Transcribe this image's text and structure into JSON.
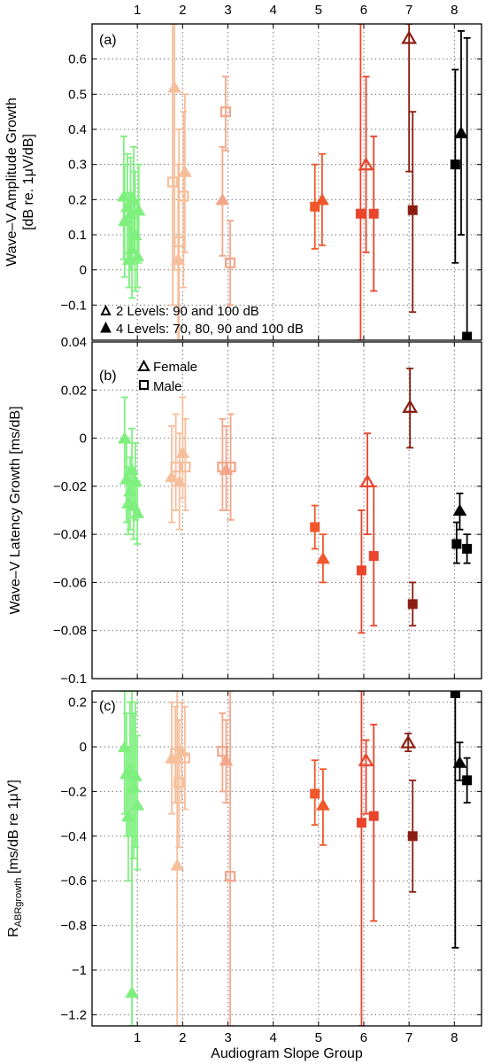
{
  "figure": {
    "xlabel": "Audiogram Slope Group",
    "top_ticks": [
      "1",
      "2",
      "3",
      "4",
      "5",
      "6",
      "7",
      "8"
    ],
    "bottom_ticks": [
      "1",
      "2",
      "3",
      "4",
      "5",
      "6",
      "7",
      "8"
    ]
  },
  "legend_levels": {
    "open": "2 Levels: 90 and 100 dB",
    "filled": "4 Levels: 70, 80, 90 and 100 dB"
  },
  "legend_sex": {
    "female": "Female",
    "male": "Male"
  },
  "colors": {
    "1": "#7ff07f",
    "2": "#f6bf9c",
    "3": "#f3a689",
    "5": "#f0572a",
    "6": "#e9452c",
    "7": "#8b1d10",
    "8": "#000000"
  },
  "chart_data": [
    {
      "type": "scatter",
      "panel": "(a)",
      "ylabel_line1": "Wave–V Amplitude Growth",
      "ylabel_line2": "[dB re. 1μV/dB]",
      "ylim": [
        -0.2,
        0.7
      ],
      "yticks": [
        "0.6",
        "0.5",
        "0.4",
        "0.3",
        "0.2",
        "0.1",
        "0",
        "−0.1"
      ],
      "ytick_values": [
        0.6,
        0.5,
        0.4,
        0.3,
        0.2,
        0.1,
        0,
        -0.1
      ],
      "xlim": [
        0,
        8.6
      ],
      "grid": true,
      "points": [
        {
          "g": "1",
          "x": 0.7,
          "y": 0.21,
          "lo": 0.03,
          "hi": 0.38,
          "m": "tri",
          "f": "filled"
        },
        {
          "g": "1",
          "x": 0.72,
          "y": 0.14,
          "lo": -0.02,
          "hi": 0.3,
          "m": "tri",
          "f": "filled"
        },
        {
          "g": "1",
          "x": 0.78,
          "y": 0.18,
          "lo": 0.02,
          "hi": 0.33,
          "m": "tri",
          "f": "filled"
        },
        {
          "g": "1",
          "x": 0.82,
          "y": 0.03,
          "lo": -0.05,
          "hi": 0.22,
          "m": "tri",
          "f": "filled"
        },
        {
          "g": "1",
          "x": 0.85,
          "y": 0.16,
          "lo": 0.0,
          "hi": 0.32,
          "m": "tri",
          "f": "filled"
        },
        {
          "g": "1",
          "x": 0.88,
          "y": 0.06,
          "lo": -0.08,
          "hi": 0.22,
          "m": "tri",
          "f": "filled"
        },
        {
          "g": "1",
          "x": 0.92,
          "y": 0.2,
          "lo": 0.05,
          "hi": 0.35,
          "m": "tri",
          "f": "filled"
        },
        {
          "g": "1",
          "x": 0.95,
          "y": 0.1,
          "lo": -0.06,
          "hi": 0.28,
          "m": "tri",
          "f": "filled"
        },
        {
          "g": "1",
          "x": 1.0,
          "y": 0.04,
          "lo": -0.05,
          "hi": 0.2,
          "m": "tri",
          "f": "filled"
        },
        {
          "g": "1",
          "x": 1.03,
          "y": 0.17,
          "lo": 0.02,
          "hi": 0.3,
          "m": "tri",
          "f": "filled"
        },
        {
          "g": "2",
          "x": 1.82,
          "y": 0.52,
          "lo": 0.0,
          "hi": 0.7,
          "m": "tri",
          "f": "filled"
        },
        {
          "g": "2",
          "x": 1.9,
          "y": 0.03,
          "lo": -0.2,
          "hi": 0.3,
          "m": "tri",
          "f": "filled"
        },
        {
          "g": "2",
          "x": 2.05,
          "y": 0.28,
          "lo": 0.05,
          "hi": 0.5,
          "m": "tri",
          "f": "filled"
        },
        {
          "g": "2",
          "x": 1.78,
          "y": 0.25,
          "lo": -0.1,
          "hi": 0.7,
          "m": "sq",
          "f": "open"
        },
        {
          "g": "2",
          "x": 1.92,
          "y": 0.08,
          "lo": -0.2,
          "hi": 0.4,
          "m": "sq",
          "f": "open"
        },
        {
          "g": "2",
          "x": 2.02,
          "y": 0.21,
          "lo": -0.05,
          "hi": 0.45,
          "m": "sq",
          "f": "open"
        },
        {
          "g": "3",
          "x": 2.88,
          "y": 0.2,
          "lo": 0.04,
          "hi": 0.35,
          "m": "tri",
          "f": "filled"
        },
        {
          "g": "3",
          "x": 2.95,
          "y": 0.45,
          "lo": 0.34,
          "hi": 0.55,
          "m": "sq",
          "f": "open"
        },
        {
          "g": "3",
          "x": 3.05,
          "y": 0.02,
          "lo": -0.1,
          "hi": 0.14,
          "m": "sq",
          "f": "open"
        },
        {
          "g": "5",
          "x": 4.92,
          "y": 0.18,
          "lo": 0.06,
          "hi": 0.3,
          "m": "sq",
          "f": "filled"
        },
        {
          "g": "5",
          "x": 5.08,
          "y": 0.2,
          "lo": 0.07,
          "hi": 0.33,
          "m": "tri",
          "f": "filled"
        },
        {
          "g": "6",
          "x": 5.93,
          "y": 0.16,
          "lo": -0.2,
          "hi": 0.7,
          "m": "sq",
          "f": "filled"
        },
        {
          "g": "6",
          "x": 6.05,
          "y": 0.3,
          "lo": 0.05,
          "hi": 0.55,
          "m": "tri",
          "f": "open"
        },
        {
          "g": "6",
          "x": 6.22,
          "y": 0.16,
          "lo": -0.06,
          "hi": 0.38,
          "m": "sq",
          "f": "filled"
        },
        {
          "g": "7",
          "x": 7.0,
          "y": 0.66,
          "lo": 0.28,
          "hi": 0.7,
          "m": "tri",
          "f": "open"
        },
        {
          "g": "7",
          "x": 7.08,
          "y": 0.17,
          "lo": -0.12,
          "hi": 0.45,
          "m": "sq",
          "f": "filled"
        },
        {
          "g": "8",
          "x": 8.02,
          "y": 0.3,
          "lo": 0.02,
          "hi": 0.57,
          "m": "sq",
          "f": "filled"
        },
        {
          "g": "8",
          "x": 8.15,
          "y": 0.39,
          "lo": 0.1,
          "hi": 0.68,
          "m": "tri",
          "f": "filled"
        },
        {
          "g": "8",
          "x": 8.28,
          "y": -0.19,
          "lo": -0.2,
          "hi": 0.66,
          "m": "sq",
          "f": "filled"
        }
      ]
    },
    {
      "type": "scatter",
      "panel": "(b)",
      "ylabel_line1": "Wave–V Latency Growth [ms/dB]",
      "ylabel_line2": "",
      "ylim": [
        -0.1,
        0.04
      ],
      "yticks": [
        "0.04",
        "0.02",
        "0",
        "−0.02",
        "−0.04",
        "−0.06",
        "−0.08",
        "−0.1"
      ],
      "ytick_values": [
        0.04,
        0.02,
        0,
        -0.02,
        -0.04,
        -0.06,
        -0.08,
        -0.1
      ],
      "xlim": [
        0,
        8.6
      ],
      "grid": true,
      "points": [
        {
          "g": "1",
          "x": 0.72,
          "y": 0.0,
          "lo": -0.018,
          "hi": 0.017,
          "m": "tri",
          "f": "filled"
        },
        {
          "g": "1",
          "x": 0.76,
          "y": -0.017,
          "lo": -0.035,
          "hi": 0.0,
          "m": "tri",
          "f": "filled"
        },
        {
          "g": "1",
          "x": 0.8,
          "y": -0.027,
          "lo": -0.04,
          "hi": -0.012,
          "m": "tri",
          "f": "filled"
        },
        {
          "g": "1",
          "x": 0.84,
          "y": -0.022,
          "lo": -0.038,
          "hi": -0.008,
          "m": "tri",
          "f": "filled"
        },
        {
          "g": "1",
          "x": 0.88,
          "y": -0.013,
          "lo": -0.03,
          "hi": 0.004,
          "m": "tri",
          "f": "filled"
        },
        {
          "g": "1",
          "x": 0.92,
          "y": -0.028,
          "lo": -0.042,
          "hi": -0.014,
          "m": "tri",
          "f": "filled"
        },
        {
          "g": "1",
          "x": 0.96,
          "y": -0.018,
          "lo": -0.034,
          "hi": -0.002,
          "m": "tri",
          "f": "filled"
        },
        {
          "g": "1",
          "x": 1.0,
          "y": -0.031,
          "lo": -0.044,
          "hi": -0.018,
          "m": "tri",
          "f": "filled"
        },
        {
          "g": "2",
          "x": 1.76,
          "y": -0.016,
          "lo": -0.035,
          "hi": 0.005,
          "m": "tri",
          "f": "filled"
        },
        {
          "g": "2",
          "x": 1.85,
          "y": -0.012,
          "lo": -0.03,
          "hi": 0.01,
          "m": "sq",
          "f": "open"
        },
        {
          "g": "2",
          "x": 1.93,
          "y": -0.018,
          "lo": -0.038,
          "hi": 0.002,
          "m": "tri",
          "f": "filled"
        },
        {
          "g": "2",
          "x": 2.0,
          "y": -0.006,
          "lo": -0.025,
          "hi": 0.017,
          "m": "tri",
          "f": "filled"
        },
        {
          "g": "2",
          "x": 2.06,
          "y": -0.012,
          "lo": -0.03,
          "hi": 0.008,
          "m": "sq",
          "f": "open"
        },
        {
          "g": "3",
          "x": 2.88,
          "y": -0.012,
          "lo": -0.03,
          "hi": 0.008,
          "m": "sq",
          "f": "open"
        },
        {
          "g": "3",
          "x": 2.96,
          "y": -0.013,
          "lo": -0.03,
          "hi": 0.005,
          "m": "tri",
          "f": "filled"
        },
        {
          "g": "3",
          "x": 3.06,
          "y": -0.012,
          "lo": -0.034,
          "hi": 0.01,
          "m": "sq",
          "f": "open"
        },
        {
          "g": "5",
          "x": 4.92,
          "y": -0.037,
          "lo": -0.046,
          "hi": -0.028,
          "m": "sq",
          "f": "filled"
        },
        {
          "g": "5",
          "x": 5.1,
          "y": -0.05,
          "lo": -0.06,
          "hi": -0.04,
          "m": "tri",
          "f": "filled"
        },
        {
          "g": "6",
          "x": 5.95,
          "y": -0.055,
          "lo": -0.081,
          "hi": -0.03,
          "m": "sq",
          "f": "filled"
        },
        {
          "g": "6",
          "x": 6.08,
          "y": -0.018,
          "lo": -0.04,
          "hi": 0.002,
          "m": "tri",
          "f": "open"
        },
        {
          "g": "6",
          "x": 6.22,
          "y": -0.049,
          "lo": -0.078,
          "hi": -0.02,
          "m": "sq",
          "f": "filled"
        },
        {
          "g": "7",
          "x": 7.02,
          "y": 0.013,
          "lo": -0.004,
          "hi": 0.029,
          "m": "tri",
          "f": "open"
        },
        {
          "g": "7",
          "x": 7.08,
          "y": -0.069,
          "lo": -0.078,
          "hi": -0.06,
          "m": "sq",
          "f": "filled"
        },
        {
          "g": "8",
          "x": 8.05,
          "y": -0.044,
          "lo": -0.052,
          "hi": -0.035,
          "m": "sq",
          "f": "filled"
        },
        {
          "g": "8",
          "x": 8.12,
          "y": -0.03,
          "lo": -0.038,
          "hi": -0.023,
          "m": "tri",
          "f": "filled"
        },
        {
          "g": "8",
          "x": 8.28,
          "y": -0.046,
          "lo": -0.052,
          "hi": -0.04,
          "m": "sq",
          "f": "filled"
        }
      ]
    },
    {
      "type": "scatter",
      "panel": "(c)",
      "ylabel_main": "R",
      "ylabel_sub": "ABRgrowth",
      "ylabel_rest": " [ms/dB re 1μV]",
      "ylim": [
        -1.25,
        0.25
      ],
      "yticks": [
        "0.2",
        "0",
        "−0.2",
        "−0.4",
        "−0.6",
        "−0.8",
        "−1",
        "−1.2"
      ],
      "ytick_values": [
        0.2,
        0,
        -0.2,
        -0.4,
        -0.6,
        -0.8,
        -1,
        -1.2
      ],
      "xlim": [
        0,
        8.6
      ],
      "grid": true,
      "points": [
        {
          "g": "1",
          "x": 0.72,
          "y": 0.0,
          "lo": -0.3,
          "hi": 0.25,
          "m": "tri",
          "f": "filled"
        },
        {
          "g": "1",
          "x": 0.76,
          "y": -0.12,
          "lo": -0.4,
          "hi": 0.15,
          "m": "tri",
          "f": "filled"
        },
        {
          "g": "1",
          "x": 0.8,
          "y": -0.31,
          "lo": -0.6,
          "hi": 0.0,
          "m": "tri",
          "f": "filled"
        },
        {
          "g": "1",
          "x": 0.84,
          "y": -0.1,
          "lo": -0.4,
          "hi": 0.2,
          "m": "tri",
          "f": "filled"
        },
        {
          "g": "1",
          "x": 0.88,
          "y": -1.1,
          "lo": -1.25,
          "hi": 0.25,
          "m": "tri",
          "f": "filled"
        },
        {
          "g": "1",
          "x": 0.92,
          "y": -0.18,
          "lo": -0.5,
          "hi": 0.15,
          "m": "tri",
          "f": "filled"
        },
        {
          "g": "1",
          "x": 0.96,
          "y": -0.13,
          "lo": -0.45,
          "hi": 0.2,
          "m": "tri",
          "f": "filled"
        },
        {
          "g": "1",
          "x": 1.0,
          "y": -0.26,
          "lo": -0.55,
          "hi": 0.05,
          "m": "tri",
          "f": "filled"
        },
        {
          "g": "2",
          "x": 1.76,
          "y": -0.05,
          "lo": -0.3,
          "hi": 0.2,
          "m": "tri",
          "f": "filled"
        },
        {
          "g": "2",
          "x": 1.84,
          "y": -0.03,
          "lo": -0.25,
          "hi": 0.18,
          "m": "sq",
          "f": "open"
        },
        {
          "g": "2",
          "x": 1.88,
          "y": -0.53,
          "lo": -1.25,
          "hi": 0.25,
          "m": "tri",
          "f": "filled"
        },
        {
          "g": "2",
          "x": 1.92,
          "y": -0.16,
          "lo": -0.45,
          "hi": 0.12,
          "m": "sq",
          "f": "open"
        },
        {
          "g": "2",
          "x": 1.98,
          "y": -0.02,
          "lo": -0.25,
          "hi": 0.2,
          "m": "tri",
          "f": "filled"
        },
        {
          "g": "2",
          "x": 2.05,
          "y": -0.05,
          "lo": -0.28,
          "hi": 0.18,
          "m": "sq",
          "f": "open"
        },
        {
          "g": "3",
          "x": 2.88,
          "y": -0.02,
          "lo": -0.2,
          "hi": 0.15,
          "m": "sq",
          "f": "open"
        },
        {
          "g": "3",
          "x": 2.96,
          "y": -0.06,
          "lo": -0.25,
          "hi": 0.12,
          "m": "tri",
          "f": "filled"
        },
        {
          "g": "3",
          "x": 3.05,
          "y": -0.58,
          "lo": -1.25,
          "hi": 0.25,
          "m": "sq",
          "f": "open"
        },
        {
          "g": "5",
          "x": 4.92,
          "y": -0.21,
          "lo": -0.35,
          "hi": -0.06,
          "m": "sq",
          "f": "filled"
        },
        {
          "g": "5",
          "x": 5.1,
          "y": -0.26,
          "lo": -0.44,
          "hi": -0.1,
          "m": "tri",
          "f": "filled"
        },
        {
          "g": "6",
          "x": 5.95,
          "y": -0.34,
          "lo": -1.25,
          "hi": 0.25,
          "m": "sq",
          "f": "filled"
        },
        {
          "g": "6",
          "x": 6.05,
          "y": -0.06,
          "lo": -0.3,
          "hi": 0.03,
          "m": "tri",
          "f": "open"
        },
        {
          "g": "6",
          "x": 6.22,
          "y": -0.31,
          "lo": -0.78,
          "hi": 0.1,
          "m": "sq",
          "f": "filled"
        },
        {
          "g": "7",
          "x": 6.98,
          "y": 0.02,
          "lo": -0.02,
          "hi": 0.06,
          "m": "tri",
          "f": "open"
        },
        {
          "g": "7",
          "x": 7.08,
          "y": -0.4,
          "lo": -0.65,
          "hi": -0.15,
          "m": "sq",
          "f": "filled"
        },
        {
          "g": "8",
          "x": 8.02,
          "y": 0.24,
          "lo": -0.9,
          "hi": 0.25,
          "m": "sq",
          "f": "filled"
        },
        {
          "g": "8",
          "x": 8.12,
          "y": -0.07,
          "lo": -0.15,
          "hi": 0.02,
          "m": "tri",
          "f": "filled"
        },
        {
          "g": "8",
          "x": 8.28,
          "y": -0.15,
          "lo": -0.25,
          "hi": -0.05,
          "m": "sq",
          "f": "filled"
        }
      ]
    }
  ]
}
